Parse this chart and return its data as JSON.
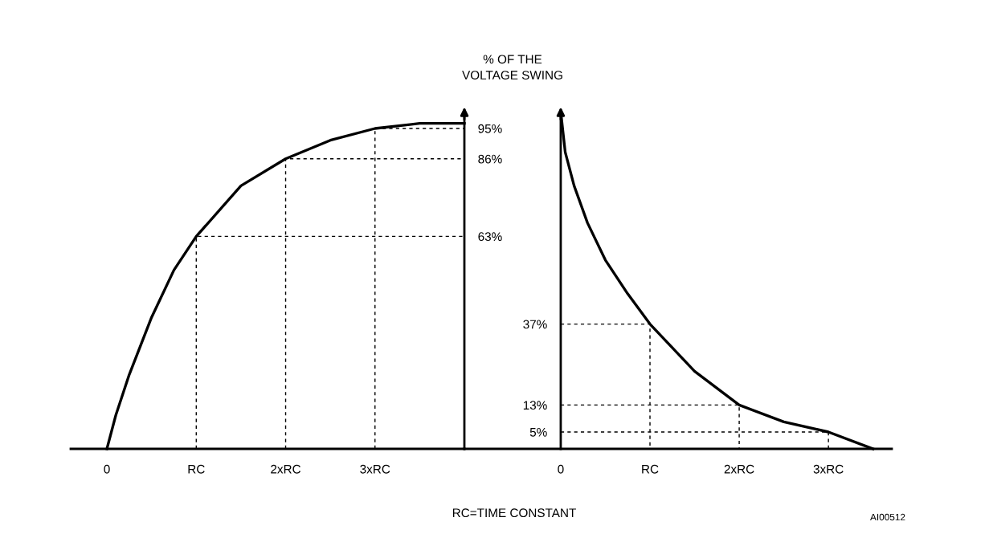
{
  "chart_data": [
    {
      "type": "line",
      "ylabel": "% OF THE\nVOLTAGE SWING",
      "xlabel": "RC=TIME CONSTANT",
      "annotations": [
        "AI00512"
      ],
      "xlim": [
        -0.405,
        4.0
      ],
      "ylim": [
        0,
        100
      ],
      "grid": false,
      "legend": false,
      "marker": "none",
      "xticks": [
        {
          "value": 0,
          "label": "0"
        },
        {
          "value": 1,
          "label": "RC"
        },
        {
          "value": 2,
          "label": "2xRC"
        },
        {
          "value": 3,
          "label": "3xRC"
        }
      ],
      "yticks": [
        {
          "value": 63,
          "label": "63%"
        },
        {
          "value": 86,
          "label": "86%"
        },
        {
          "value": 95,
          "label": "95%"
        }
      ],
      "series": [
        {
          "color": "#000000",
          "line_style": "solid",
          "x": [
            0,
            0.1,
            0.25,
            0.5,
            0.75,
            1,
            1.5,
            2,
            2.5,
            3,
            3.5,
            4.0
          ],
          "values": [
            0,
            10,
            22,
            39,
            53,
            63,
            78,
            86,
            91.5,
            95,
            96.5,
            96.5
          ]
        },
        {
          "color": "#000000",
          "line_style": "dashed",
          "x": [
            1,
            1,
            4.0
          ],
          "values": [
            0,
            63,
            63
          ]
        },
        {
          "color": "#000000",
          "line_style": "dashed",
          "x": [
            2,
            2,
            4.0
          ],
          "values": [
            0,
            86,
            86
          ]
        },
        {
          "color": "#000000",
          "line_style": "dashed",
          "x": [
            3,
            3,
            4.0
          ],
          "values": [
            0,
            95,
            95
          ]
        }
      ]
    },
    {
      "type": "line",
      "xlim": [
        -1.08,
        3.71
      ],
      "ylim": [
        0,
        100
      ],
      "grid": false,
      "legend": false,
      "marker": "none",
      "xticks": [
        {
          "value": 0,
          "label": "0"
        },
        {
          "value": 1,
          "label": "RC"
        },
        {
          "value": 2,
          "label": "2xRC"
        },
        {
          "value": 3,
          "label": "3xRC"
        }
      ],
      "yticks": [
        {
          "value": 5,
          "label": "5%"
        },
        {
          "value": 13,
          "label": "13%"
        },
        {
          "value": 37,
          "label": "37%"
        }
      ],
      "series": [
        {
          "color": "#000000",
          "line_style": "solid",
          "x": [
            0,
            0.05,
            0.15,
            0.3,
            0.5,
            0.75,
            1,
            1.5,
            2,
            2.5,
            3,
            3.5
          ],
          "values": [
            100,
            88,
            78,
            67,
            56,
            46,
            37,
            23,
            13,
            8,
            5,
            0
          ]
        },
        {
          "color": "#000000",
          "line_style": "dashed",
          "x": [
            0,
            1,
            1
          ],
          "values": [
            37,
            37,
            0
          ]
        },
        {
          "color": "#000000",
          "line_style": "dashed",
          "x": [
            0,
            2,
            2
          ],
          "values": [
            13,
            13,
            0
          ]
        },
        {
          "color": "#000000",
          "line_style": "dashed",
          "x": [
            0,
            3,
            3
          ],
          "values": [
            5,
            5,
            0
          ]
        }
      ]
    }
  ]
}
